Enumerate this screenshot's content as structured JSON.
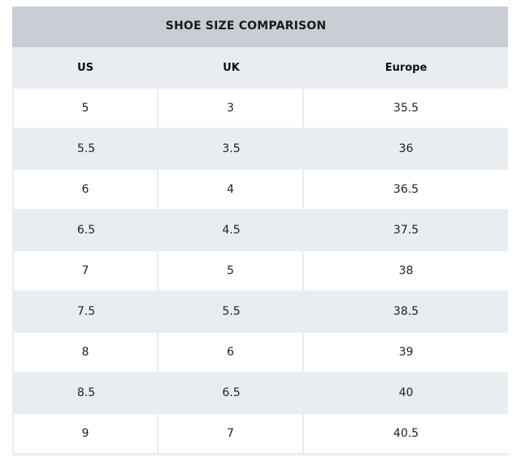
{
  "title": "SHOE SIZE COMPARISON",
  "headers": {
    "us": "US",
    "uk": "UK",
    "europe": "Europe"
  },
  "rows": [
    {
      "us": "5",
      "uk": "3",
      "europe": "35.5"
    },
    {
      "us": "5.5",
      "uk": "3.5",
      "europe": "36"
    },
    {
      "us": "6",
      "uk": "4",
      "europe": "36.5"
    },
    {
      "us": "6.5",
      "uk": "4.5",
      "europe": "37.5"
    },
    {
      "us": "7",
      "uk": "5",
      "europe": "38"
    },
    {
      "us": "7.5",
      "uk": "5.5",
      "europe": "38.5"
    },
    {
      "us": "8",
      "uk": "6",
      "europe": "39"
    },
    {
      "us": "8.5",
      "uk": "6.5",
      "europe": "40"
    },
    {
      "us": "9",
      "uk": "7",
      "europe": "40.5"
    }
  ],
  "colors": {
    "title_bar": "#c9ced5",
    "band": "#e9ecf0",
    "cell_white": "#ffffff"
  }
}
